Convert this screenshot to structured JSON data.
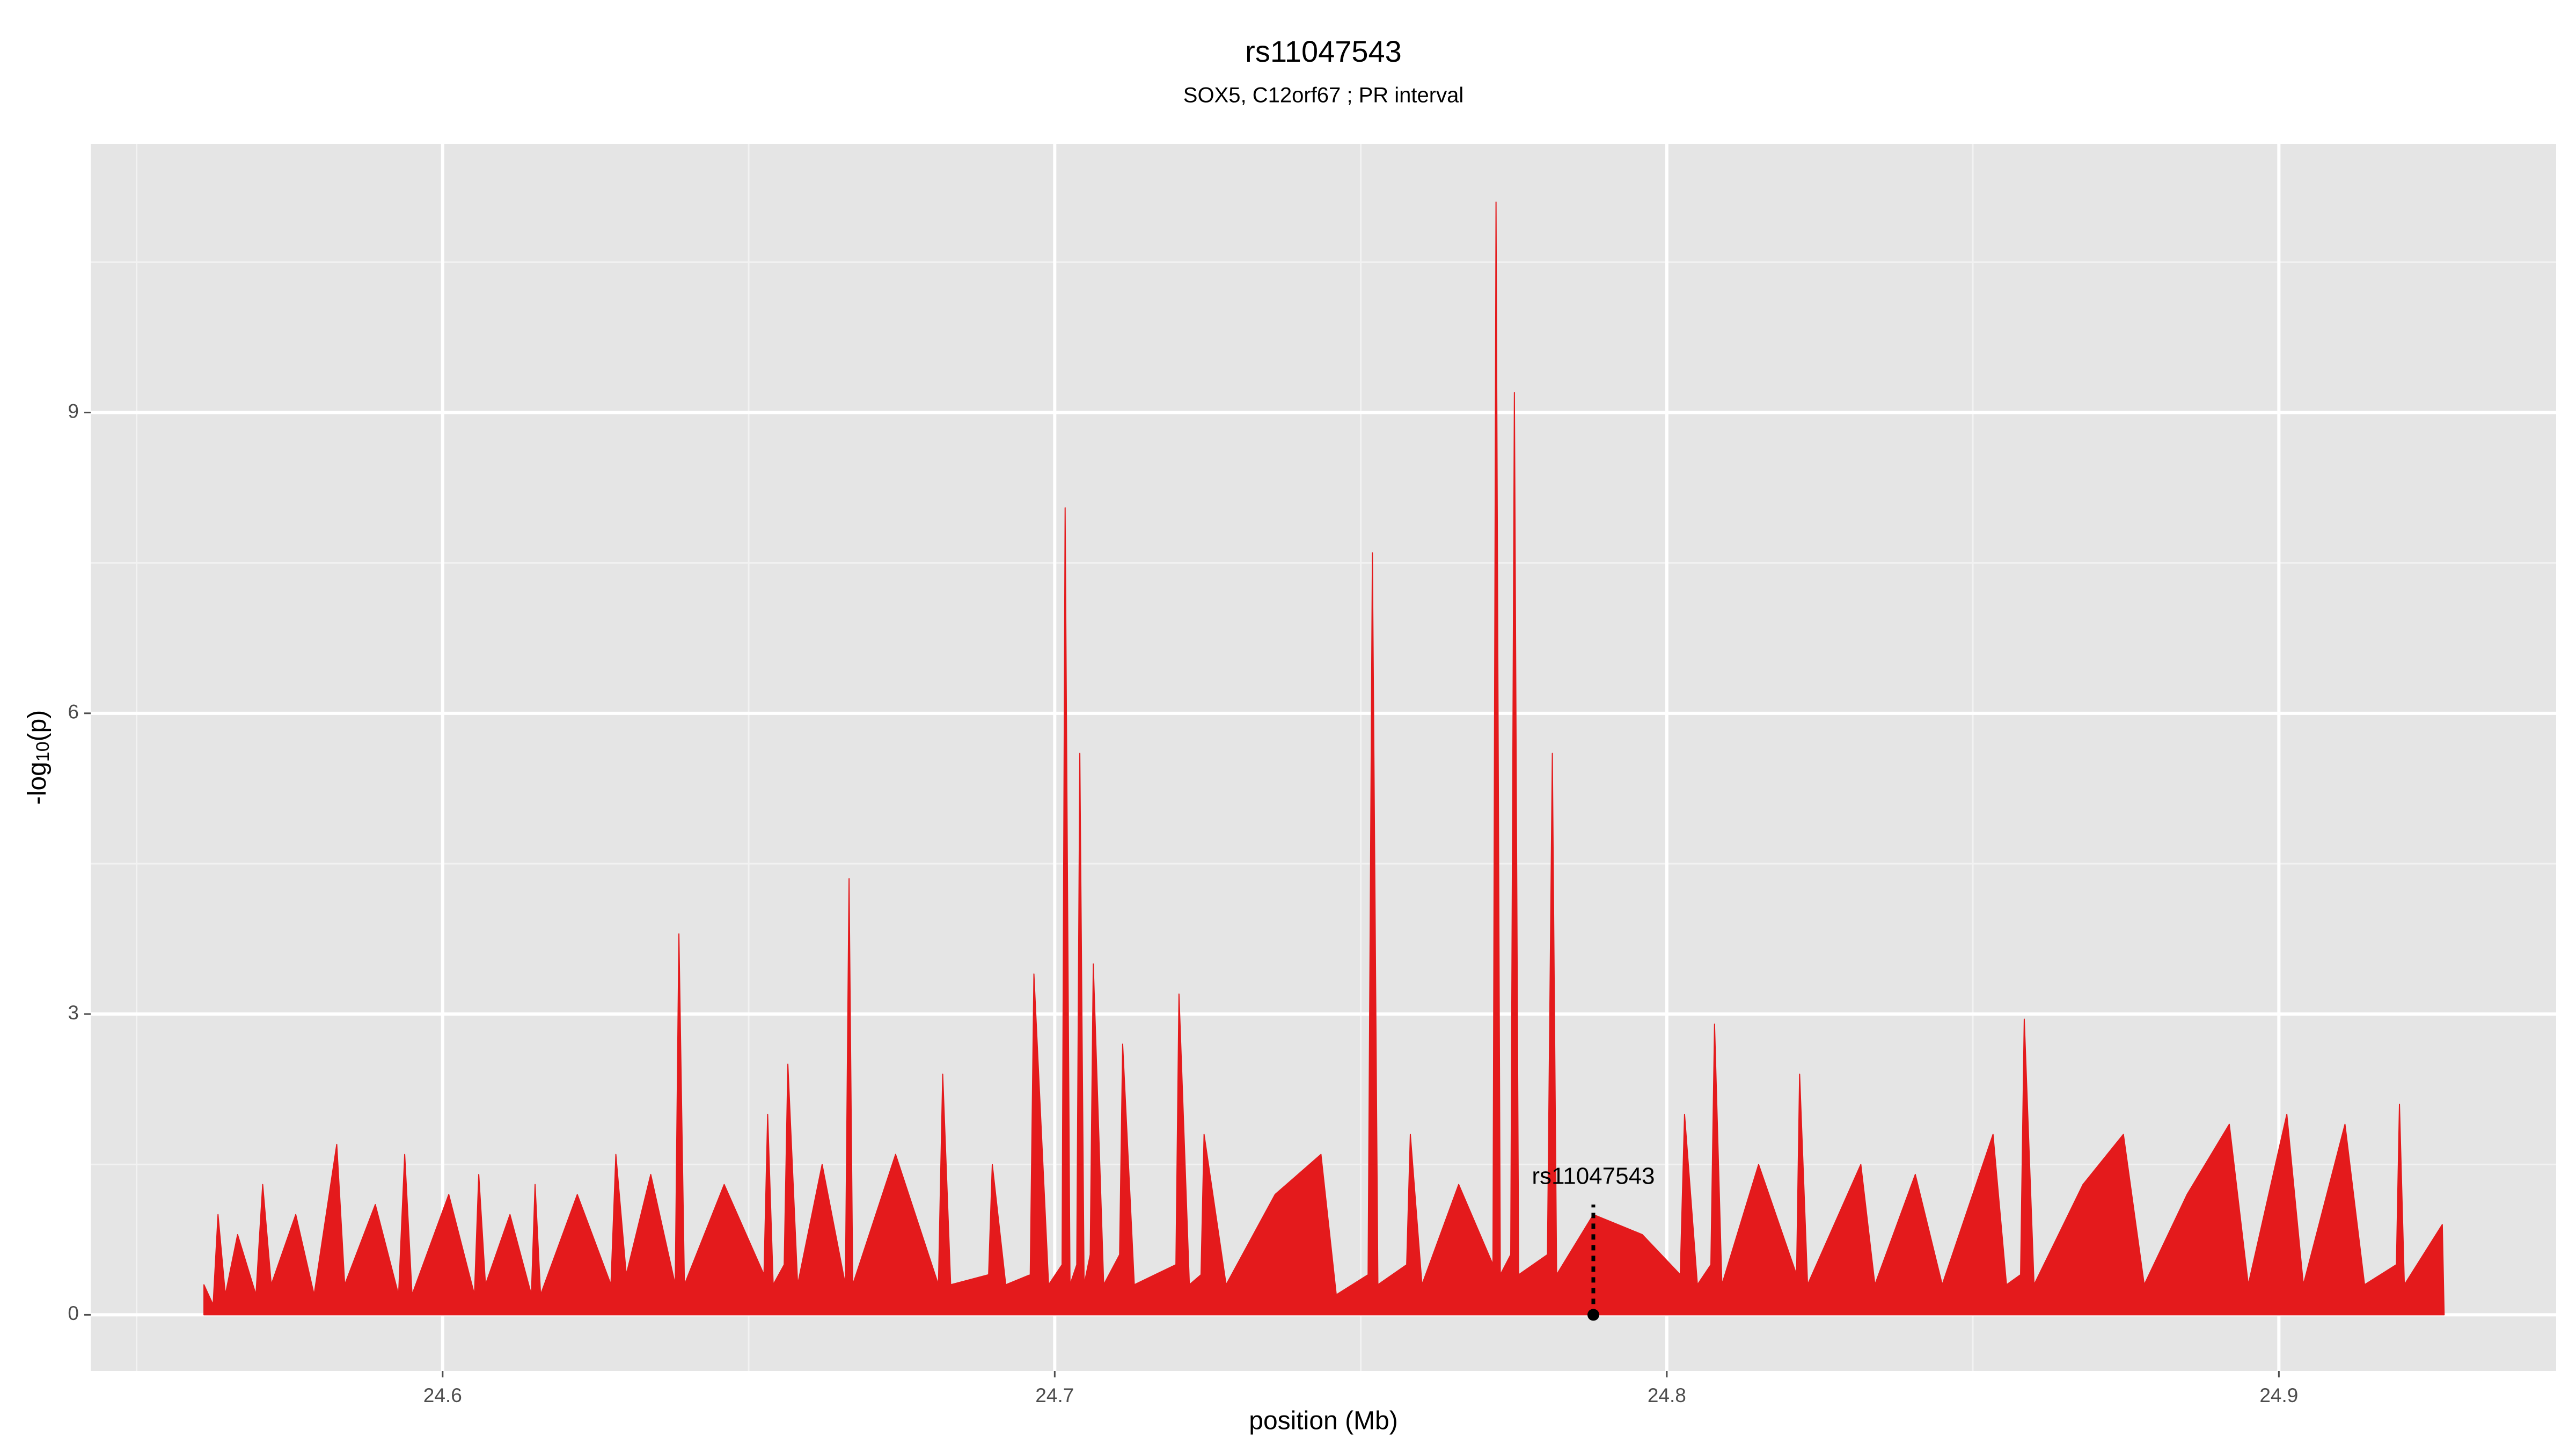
{
  "chart_data": {
    "type": "area",
    "title": "rs11047543",
    "subtitle": "SOX5, C12orf67 ; PR interval",
    "xlabel": "position (Mb)",
    "ylabel": [
      "-log",
      "10",
      "(p)"
    ],
    "xlim": [
      24.5425,
      24.9453
    ],
    "ylim": [
      -0.56,
      11.68
    ],
    "xticks": [
      24.6,
      24.7,
      24.8,
      24.9
    ],
    "yticks": [
      0,
      3,
      6,
      9
    ],
    "x_minor_grid": [
      24.55,
      24.65,
      24.75,
      24.85
    ],
    "y_minor_grid": [
      1.5,
      4.5,
      7.5,
      10.5
    ],
    "grid": true,
    "x": [
      24.561,
      24.5625,
      24.5633,
      24.5645,
      24.5665,
      24.5695,
      24.5706,
      24.572,
      24.576,
      24.579,
      24.5827,
      24.584,
      24.589,
      24.5928,
      24.5938,
      24.595,
      24.601,
      24.6052,
      24.6059,
      24.607,
      24.611,
      24.6145,
      24.6151,
      24.616,
      24.622,
      24.6275,
      24.6283,
      24.63,
      24.634,
      24.638,
      24.6386,
      24.6395,
      24.646,
      24.6525,
      24.6531,
      24.654,
      24.6558,
      24.6564,
      24.658,
      24.662,
      24.6658,
      24.6664,
      24.667,
      24.674,
      24.681,
      24.6817,
      24.683,
      24.6892,
      24.6898,
      24.692,
      24.696,
      24.6966,
      24.699,
      24.7012,
      24.7017,
      24.7025,
      24.7036,
      24.7041,
      24.7048,
      24.7058,
      24.7063,
      24.708,
      24.7106,
      24.7111,
      24.713,
      24.7198,
      24.7203,
      24.722,
      24.7239,
      24.7244,
      24.728,
      24.736,
      24.7435,
      24.746,
      24.7512,
      24.7519,
      24.7528,
      24.7575,
      24.7581,
      24.76,
      24.766,
      24.7716,
      24.7721,
      24.7728,
      24.7745,
      24.7751,
      24.7758,
      24.7805,
      24.7813,
      24.782,
      24.788,
      24.796,
      24.8022,
      24.8029,
      24.805,
      24.8072,
      24.8078,
      24.809,
      24.815,
      24.8212,
      24.8217,
      24.823,
      24.8317,
      24.834,
      24.8406,
      24.845,
      24.8533,
      24.8555,
      24.8578,
      24.8584,
      24.86,
      24.868,
      24.8746,
      24.878,
      24.885,
      24.8919,
      24.895,
      24.9013,
      24.904,
      24.9108,
      24.914,
      24.9192,
      24.9197,
      24.9205,
      24.9267,
      24.927
    ],
    "series": [
      {
        "name": "-log10(p)",
        "color": "#e41a1c",
        "values": [
          0.3,
          0.1,
          1.0,
          0.2,
          0.8,
          0.2,
          1.3,
          0.3,
          1.0,
          0.2,
          1.7,
          0.3,
          1.1,
          0.2,
          1.6,
          0.2,
          1.2,
          0.2,
          1.4,
          0.3,
          1.0,
          0.2,
          1.3,
          0.2,
          1.2,
          0.3,
          1.6,
          0.4,
          1.4,
          0.3,
          3.8,
          0.3,
          1.3,
          0.4,
          2.0,
          0.3,
          0.5,
          2.5,
          0.3,
          1.5,
          0.3,
          4.35,
          0.3,
          1.6,
          0.3,
          2.4,
          0.3,
          0.4,
          1.5,
          0.3,
          0.4,
          3.4,
          0.3,
          0.5,
          8.05,
          0.3,
          0.5,
          5.6,
          0.3,
          0.6,
          3.5,
          0.3,
          0.6,
          2.7,
          0.3,
          0.5,
          3.2,
          0.3,
          0.4,
          1.8,
          0.3,
          1.2,
          1.6,
          0.2,
          0.4,
          7.6,
          0.3,
          0.5,
          1.8,
          0.3,
          1.3,
          0.5,
          11.1,
          0.4,
          0.6,
          9.2,
          0.4,
          0.6,
          5.6,
          0.4,
          1.0,
          0.8,
          0.4,
          2.0,
          0.3,
          0.5,
          2.9,
          0.3,
          1.5,
          0.4,
          2.4,
          0.3,
          1.5,
          0.3,
          1.4,
          0.3,
          1.8,
          0.3,
          0.4,
          2.95,
          0.3,
          1.3,
          1.8,
          0.3,
          1.2,
          1.9,
          0.3,
          2.0,
          0.3,
          1.9,
          0.3,
          0.5,
          2.1,
          0.3,
          0.9,
          0
        ]
      }
    ],
    "annotation": {
      "text": "rs11047543",
      "x": 24.788,
      "ymin": 0,
      "ymax": 1.1
    }
  }
}
